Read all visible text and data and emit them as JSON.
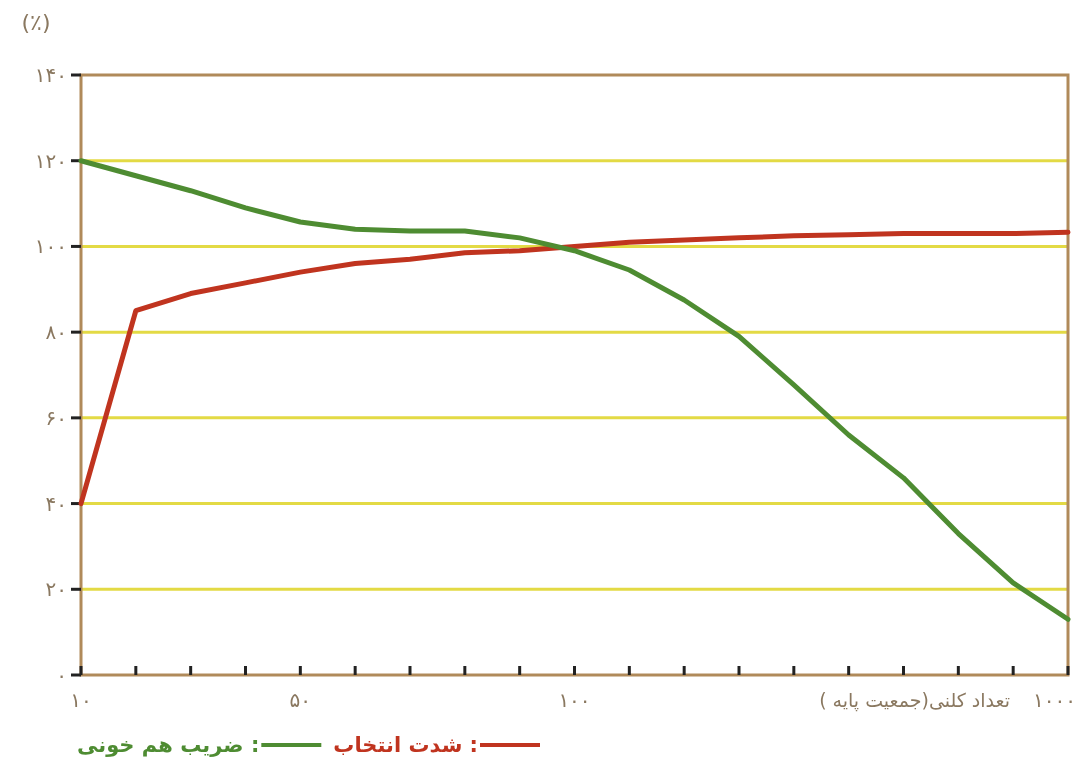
{
  "chart_data": {
    "type": "line",
    "ylabel": "(٪)",
    "xlabel": "تعداد کلنی(جمعیت پایه )",
    "categories": [
      "۱۰",
      null,
      null,
      null,
      "۵۰",
      null,
      null,
      null,
      null,
      "۱۰۰",
      null,
      null,
      null,
      null,
      null,
      null,
      null,
      null,
      "۱۰۰۰"
    ],
    "series": [
      {
        "name": ": شدت انتخاب",
        "color": "#c0341f",
        "values": [
          40,
          85,
          89,
          91.5,
          94,
          96,
          97,
          98.5,
          99,
          100,
          101,
          101.5,
          102,
          102.5,
          102.7,
          103,
          103,
          103,
          103.3
        ]
      },
      {
        "name": ": ضریب هم خونی",
        "color": "#4e8c32",
        "values": [
          120,
          116.5,
          113,
          109,
          105.7,
          104,
          103.6,
          103.6,
          102,
          99,
          94.5,
          87.5,
          79,
          67.7,
          56,
          46,
          33,
          21.5,
          13
        ]
      }
    ],
    "ylim": [
      0,
      140
    ],
    "yticks": [
      {
        "value": 0,
        "label": "۰"
      },
      {
        "value": 20,
        "label": "۲۰"
      },
      {
        "value": 40,
        "label": "۴۰"
      },
      {
        "value": 60,
        "label": "۶۰"
      },
      {
        "value": 80,
        "label": "۸۰"
      },
      {
        "value": 100,
        "label": "۱۰۰"
      },
      {
        "value": 120,
        "label": "۱۲۰"
      },
      {
        "value": 140,
        "label": "۱۴۰"
      }
    ],
    "grid": "y",
    "legend": "bottom"
  }
}
